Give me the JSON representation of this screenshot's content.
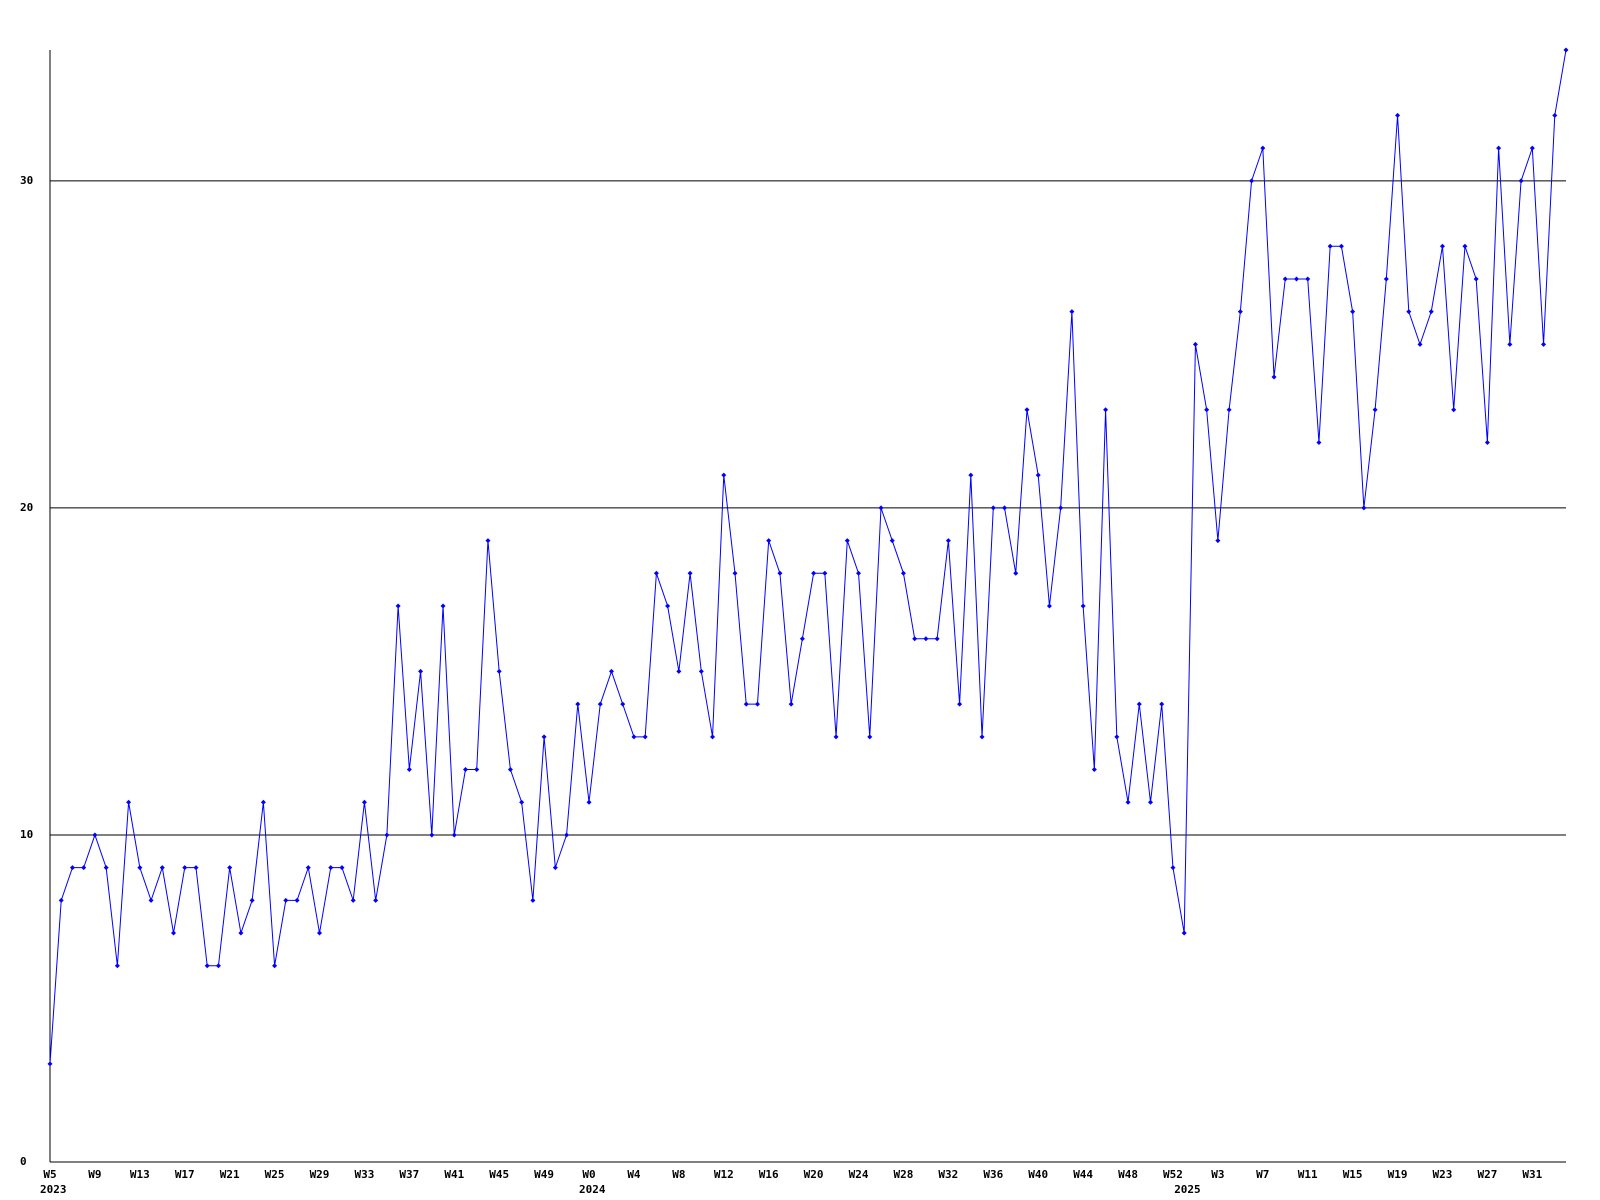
{
  "chart_data": {
    "type": "line",
    "categories": [
      "W5",
      null,
      null,
      null,
      "W9",
      null,
      null,
      null,
      "W13",
      null,
      null,
      null,
      "W17",
      null,
      null,
      null,
      "W21",
      null,
      null,
      null,
      "W25",
      null,
      null,
      null,
      "W29",
      null,
      null,
      null,
      "W33",
      null,
      null,
      null,
      "W37",
      null,
      null,
      null,
      "W41",
      null,
      null,
      null,
      "W45",
      null,
      null,
      null,
      "W49",
      null,
      null,
      null,
      "W0",
      null,
      null,
      null,
      "W4",
      null,
      null,
      null,
      "W8",
      null,
      null,
      null,
      "W12",
      null,
      null,
      null,
      "W16",
      null,
      null,
      null,
      "W20",
      null,
      null,
      null,
      "W24",
      null,
      null,
      null,
      "W28",
      null,
      null,
      null,
      "W32",
      null,
      null,
      null,
      "W36",
      null,
      null,
      null,
      "W40",
      null,
      null,
      null,
      "W44",
      null,
      null,
      null,
      "W48",
      null,
      null,
      null,
      "W52",
      null,
      null,
      null,
      "W3",
      null,
      null,
      null,
      "W7",
      null,
      null,
      null,
      "W11",
      null,
      null,
      null,
      "W15",
      null,
      null,
      null,
      "W19",
      null,
      null,
      null,
      "W23",
      null,
      null,
      null,
      "W27",
      null,
      null,
      null,
      "W31",
      null,
      null,
      null
    ],
    "year_labels": [
      "2023",
      null,
      null,
      null,
      null,
      null,
      null,
      null,
      null,
      null,
      null,
      null,
      null,
      null,
      null,
      null,
      null,
      null,
      null,
      null,
      null,
      null,
      null,
      null,
      null,
      null,
      null,
      null,
      null,
      null,
      null,
      null,
      null,
      null,
      null,
      null,
      null,
      null,
      null,
      null,
      null,
      null,
      null,
      null,
      null,
      null,
      null,
      null,
      "2024",
      null,
      null,
      null,
      null,
      null,
      null,
      null,
      null,
      null,
      null,
      null,
      null,
      null,
      null,
      null,
      null,
      null,
      null,
      null,
      null,
      null,
      null,
      null,
      null,
      null,
      null,
      null,
      null,
      null,
      null,
      null,
      null,
      null,
      null,
      null,
      null,
      null,
      null,
      null,
      null,
      null,
      null,
      null,
      null,
      null,
      null,
      null,
      null,
      null,
      null,
      null,
      null,
      "2025",
      null,
      null,
      null,
      null,
      null,
      null,
      null,
      null,
      null,
      null,
      null,
      null,
      null,
      null,
      null,
      null,
      null,
      null,
      null,
      null,
      null,
      null,
      null,
      null,
      null,
      null,
      null,
      null,
      null,
      null,
      null,
      null,
      null
    ],
    "values": [
      3,
      8,
      9,
      9,
      10,
      9,
      6,
      11,
      9,
      8,
      9,
      7,
      9,
      9,
      6,
      6,
      9,
      7,
      8,
      11,
      6,
      8,
      8,
      9,
      7,
      9,
      9,
      8,
      11,
      8,
      10,
      17,
      12,
      15,
      10,
      17,
      10,
      12,
      12,
      19,
      15,
      12,
      11,
      8,
      13,
      9,
      10,
      14,
      11,
      14,
      15,
      14,
      13,
      13,
      18,
      17,
      15,
      18,
      15,
      13,
      21,
      18,
      14,
      14,
      19,
      18,
      14,
      16,
      18,
      18,
      13,
      19,
      18,
      13,
      20,
      19,
      18,
      16,
      16,
      16,
      19,
      14,
      21,
      13,
      20,
      20,
      18,
      23,
      21,
      17,
      20,
      26,
      17,
      12,
      23,
      13,
      11,
      14,
      11,
      14,
      9,
      7,
      25,
      23,
      19,
      23,
      26,
      30,
      31,
      24,
      27,
      27,
      27,
      22,
      28,
      28,
      26,
      20,
      23,
      27,
      32,
      26,
      25,
      26,
      28,
      23,
      28,
      27,
      22,
      31,
      25,
      30,
      31,
      25,
      32,
      34
    ],
    "color": "#0000ff",
    "ylim": [
      0,
      34
    ],
    "yticks": [
      0,
      10,
      20,
      30
    ],
    "grid": true
  }
}
